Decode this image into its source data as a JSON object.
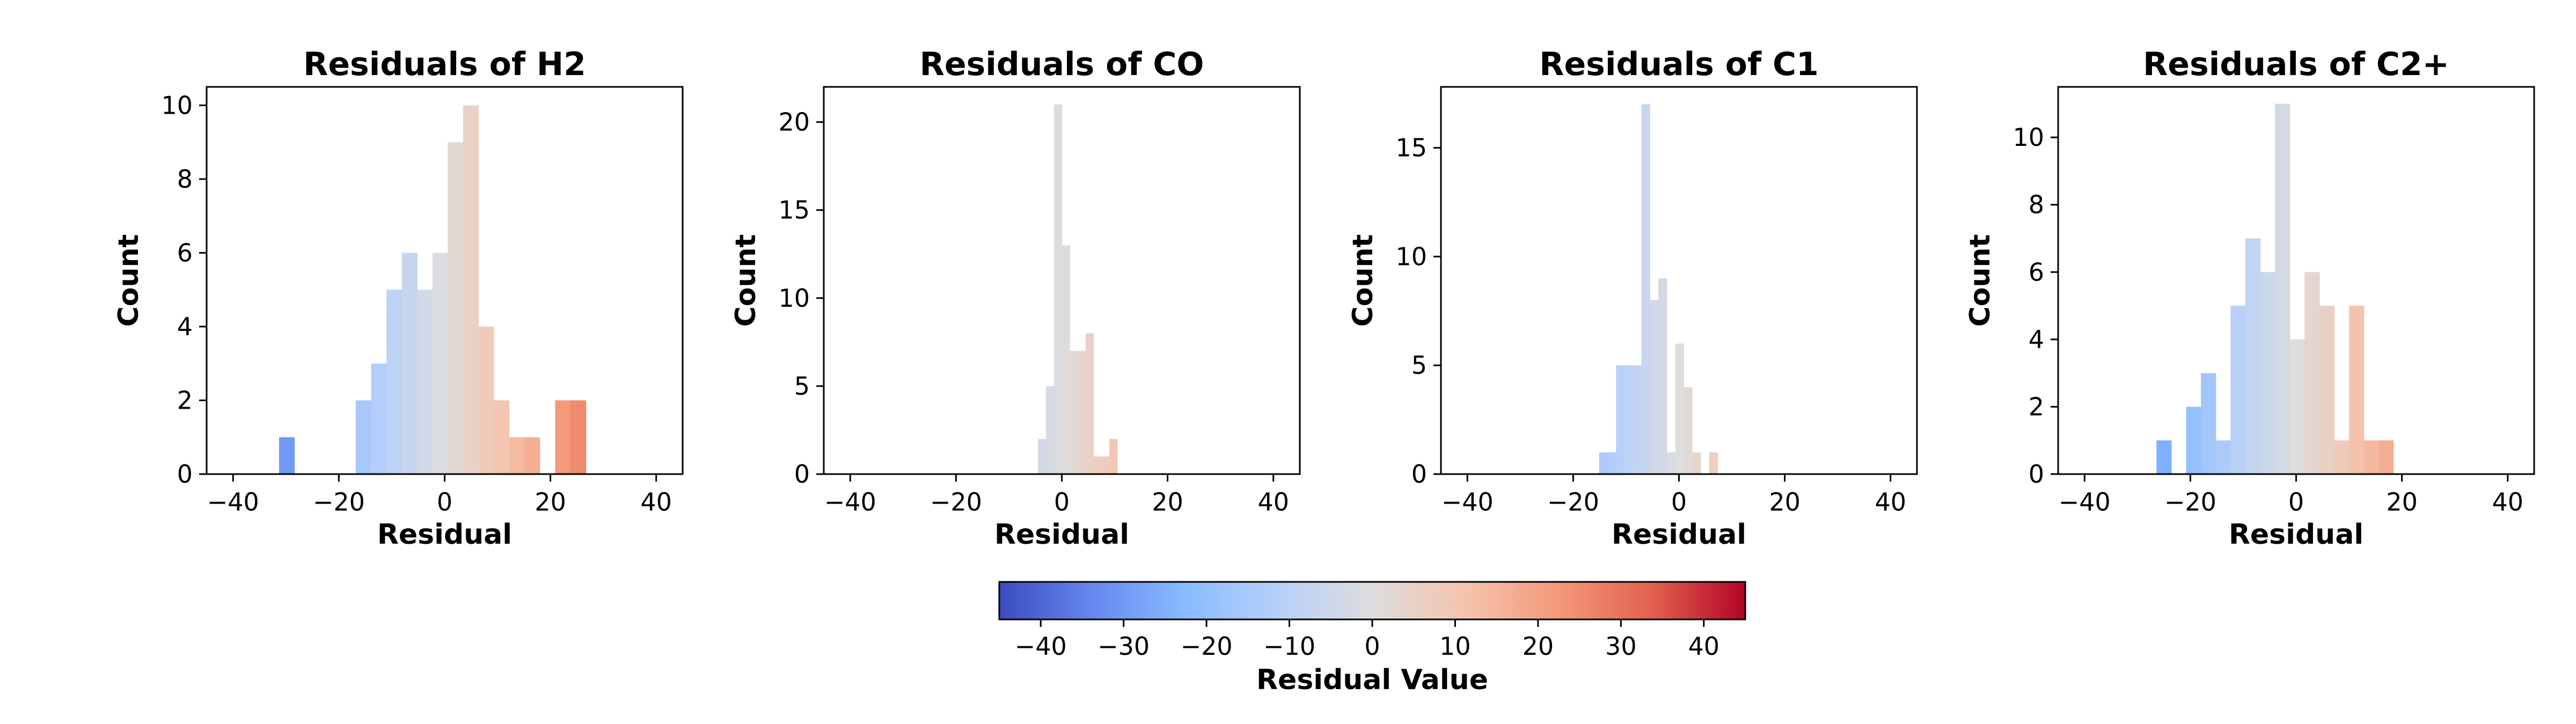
{
  "chart_data": [
    {
      "type": "bar",
      "subtype": "histogram",
      "title": "Residuals of H2",
      "xlabel": "Residual",
      "ylabel": "Count",
      "xlim": [
        -45,
        45
      ],
      "ylim": [
        0,
        10.5
      ],
      "xticks": [
        -40,
        -20,
        0,
        20,
        40
      ],
      "yticks": [
        0,
        2,
        4,
        6,
        8,
        10
      ],
      "bin_width": 2.9,
      "bins": [
        {
          "x": -31.3,
          "value": 1
        },
        {
          "x": -16.8,
          "value": 2
        },
        {
          "x": -13.9,
          "value": 3
        },
        {
          "x": -11.0,
          "value": 5
        },
        {
          "x": -8.1,
          "value": 6
        },
        {
          "x": -5.2,
          "value": 5
        },
        {
          "x": -2.3,
          "value": 6
        },
        {
          "x": 0.6,
          "value": 9
        },
        {
          "x": 3.5,
          "value": 10
        },
        {
          "x": 6.4,
          "value": 4
        },
        {
          "x": 9.3,
          "value": 2
        },
        {
          "x": 12.2,
          "value": 1
        },
        {
          "x": 15.1,
          "value": 1
        },
        {
          "x": 20.9,
          "value": 2
        },
        {
          "x": 23.8,
          "value": 2
        }
      ]
    },
    {
      "type": "bar",
      "subtype": "histogram",
      "title": "Residuals of CO",
      "xlabel": "Residual",
      "ylabel": "Count",
      "xlim": [
        -45,
        45
      ],
      "ylim": [
        0,
        22
      ],
      "xticks": [
        -40,
        -20,
        0,
        20,
        40
      ],
      "yticks": [
        0,
        5,
        10,
        15,
        20
      ],
      "bin_width": 1.5,
      "bins": [
        {
          "x": -4.5,
          "value": 2
        },
        {
          "x": -3.0,
          "value": 5
        },
        {
          "x": -1.5,
          "value": 21
        },
        {
          "x": 0.0,
          "value": 13
        },
        {
          "x": 1.5,
          "value": 7
        },
        {
          "x": 3.0,
          "value": 7
        },
        {
          "x": 4.5,
          "value": 8
        },
        {
          "x": 6.0,
          "value": 1
        },
        {
          "x": 7.5,
          "value": 1
        },
        {
          "x": 9.0,
          "value": 2
        }
      ]
    },
    {
      "type": "bar",
      "subtype": "histogram",
      "title": "Residuals of C1",
      "xlabel": "Residual",
      "ylabel": "Count",
      "xlim": [
        -45,
        45
      ],
      "ylim": [
        0,
        17.8
      ],
      "xticks": [
        -40,
        -20,
        0,
        20,
        40
      ],
      "yticks": [
        0,
        5,
        10,
        15
      ],
      "bin_width": 1.6,
      "bins": [
        {
          "x": -15.1,
          "value": 1
        },
        {
          "x": -13.5,
          "value": 1
        },
        {
          "x": -11.9,
          "value": 5
        },
        {
          "x": -10.3,
          "value": 5
        },
        {
          "x": -8.7,
          "value": 5
        },
        {
          "x": -7.1,
          "value": 17
        },
        {
          "x": -5.5,
          "value": 8
        },
        {
          "x": -3.9,
          "value": 9
        },
        {
          "x": -2.3,
          "value": 1
        },
        {
          "x": -0.7,
          "value": 6
        },
        {
          "x": 0.9,
          "value": 4
        },
        {
          "x": 2.5,
          "value": 1
        },
        {
          "x": 5.7,
          "value": 1
        }
      ]
    },
    {
      "type": "bar",
      "subtype": "histogram",
      "title": "Residuals of C2+",
      "xlabel": "Residual",
      "ylabel": "Count",
      "xlim": [
        -45,
        45
      ],
      "ylim": [
        0,
        11.5
      ],
      "xticks": [
        -40,
        -20,
        0,
        20,
        40
      ],
      "yticks": [
        0,
        2,
        4,
        6,
        8,
        10
      ],
      "bin_width": 2.8,
      "bins": [
        {
          "x": -26.4,
          "value": 1
        },
        {
          "x": -20.8,
          "value": 2
        },
        {
          "x": -18.0,
          "value": 3
        },
        {
          "x": -15.2,
          "value": 1
        },
        {
          "x": -12.4,
          "value": 5
        },
        {
          "x": -9.6,
          "value": 7
        },
        {
          "x": -6.8,
          "value": 6
        },
        {
          "x": -4.0,
          "value": 11
        },
        {
          "x": -1.2,
          "value": 4
        },
        {
          "x": 1.6,
          "value": 6
        },
        {
          "x": 4.4,
          "value": 5
        },
        {
          "x": 7.2,
          "value": 1
        },
        {
          "x": 10.0,
          "value": 5
        },
        {
          "x": 12.8,
          "value": 1
        },
        {
          "x": 15.6,
          "value": 1
        }
      ]
    }
  ],
  "colorbar": {
    "label": "Residual Value",
    "range": [
      -45,
      45
    ],
    "ticks": [
      -40,
      -30,
      -20,
      -10,
      0,
      10,
      20,
      30,
      40
    ],
    "colormap": "coolwarm",
    "stops": [
      "#3b4cc0",
      "#6688ee",
      "#88bbff",
      "#b8d0f9",
      "#dddddd",
      "#f5c4ad",
      "#f4987a",
      "#e1614e",
      "#b40426"
    ]
  }
}
